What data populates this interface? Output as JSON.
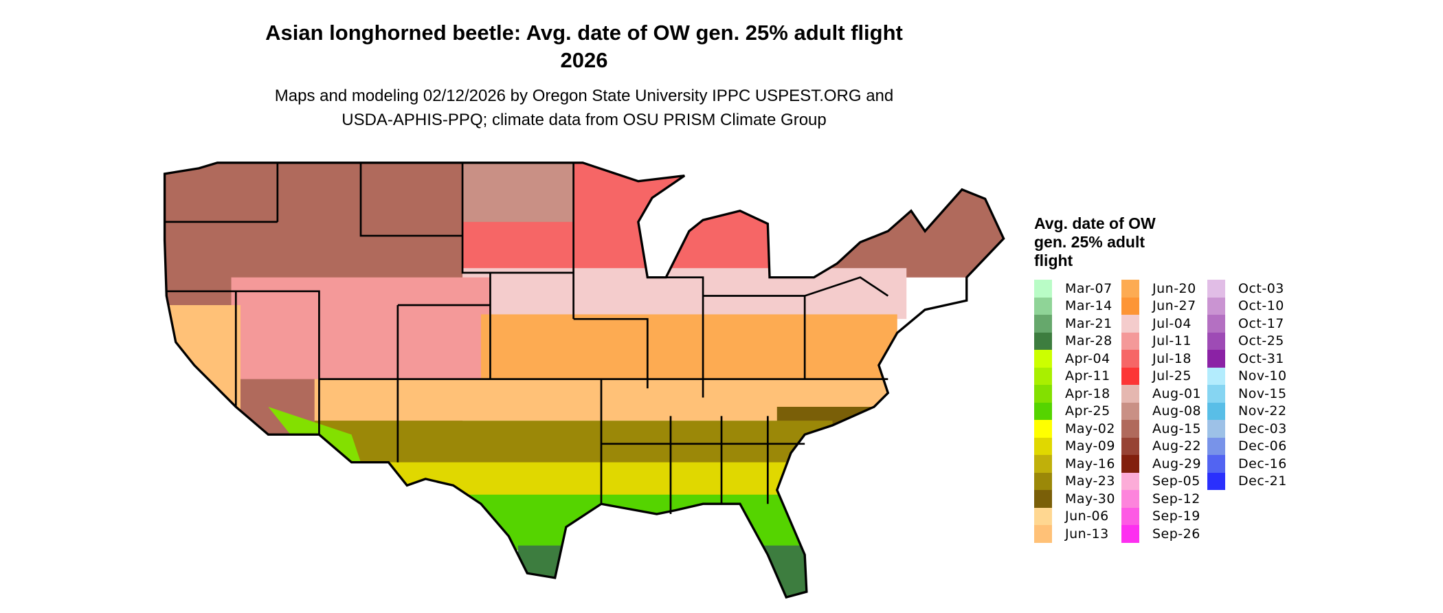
{
  "title": {
    "line1": "Asian longhorned beetle: Avg. date of OW gen. 25% adult flight",
    "line2": "2026"
  },
  "subtitle": {
    "line1": "Maps and modeling 02/12/2026 by Oregon State University IPPC USPEST.ORG and",
    "line2": "USDA-APHIS-PPQ; climate data from OSU PRISM Climate Group"
  },
  "legend": {
    "title_lines": [
      "Avg. date of OW",
      "gen. 25% adult",
      "flight"
    ],
    "columns": [
      [
        {
          "label": "Mar-07",
          "color": "#b9fcc6"
        },
        {
          "label": "Mar-14",
          "color": "#8fd497"
        },
        {
          "label": "Mar-21",
          "color": "#66a86c"
        },
        {
          "label": "Mar-28",
          "color": "#3d7d3f"
        },
        {
          "label": "Apr-04",
          "color": "#ccff00"
        },
        {
          "label": "Apr-11",
          "color": "#a9ef00"
        },
        {
          "label": "Apr-18",
          "color": "#83e000"
        },
        {
          "label": "Apr-25",
          "color": "#55d400"
        },
        {
          "label": "May-02",
          "color": "#ffff00"
        },
        {
          "label": "May-09",
          "color": "#e0d800"
        },
        {
          "label": "May-16",
          "color": "#c0b00a"
        },
        {
          "label": "May-23",
          "color": "#9b8808"
        },
        {
          "label": "May-30",
          "color": "#7a5f08"
        },
        {
          "label": "Jun-06",
          "color": "#ffd791"
        },
        {
          "label": "Jun-13",
          "color": "#ffc177"
        }
      ],
      [
        {
          "label": "Jun-20",
          "color": "#fdab52"
        },
        {
          "label": "Jun-27",
          "color": "#fd9535"
        },
        {
          "label": "Jul-04",
          "color": "#f4cccc"
        },
        {
          "label": "Jul-11",
          "color": "#f49999"
        },
        {
          "label": "Jul-18",
          "color": "#f66666"
        },
        {
          "label": "Jul-25",
          "color": "#fc3535"
        },
        {
          "label": "Aug-01",
          "color": "#e5b7b0"
        },
        {
          "label": "Aug-08",
          "color": "#c99085"
        },
        {
          "label": "Aug-15",
          "color": "#b06a5c"
        },
        {
          "label": "Aug-22",
          "color": "#974334"
        },
        {
          "label": "Aug-29",
          "color": "#82200d"
        },
        {
          "label": "Sep-05",
          "color": "#fcacd8"
        },
        {
          "label": "Sep-12",
          "color": "#fd84dc"
        },
        {
          "label": "Sep-19",
          "color": "#fd5ae4"
        },
        {
          "label": "Sep-26",
          "color": "#fd2ff0"
        }
      ],
      [
        {
          "label": "Oct-03",
          "color": "#e1bde6"
        },
        {
          "label": "Oct-10",
          "color": "#ca94d2"
        },
        {
          "label": "Oct-17",
          "color": "#b470c2"
        },
        {
          "label": "Oct-25",
          "color": "#9e4bb5"
        },
        {
          "label": "Oct-31",
          "color": "#8b22a5"
        },
        {
          "label": "Nov-10",
          "color": "#b3ecfd"
        },
        {
          "label": "Nov-15",
          "color": "#86d5f2"
        },
        {
          "label": "Nov-22",
          "color": "#59bee7"
        },
        {
          "label": "Dec-03",
          "color": "#9dc1e7"
        },
        {
          "label": "Dec-06",
          "color": "#7893e9"
        },
        {
          "label": "Dec-16",
          "color": "#5264f2"
        },
        {
          "label": "Dec-21",
          "color": "#2a30fd"
        }
      ]
    ]
  }
}
